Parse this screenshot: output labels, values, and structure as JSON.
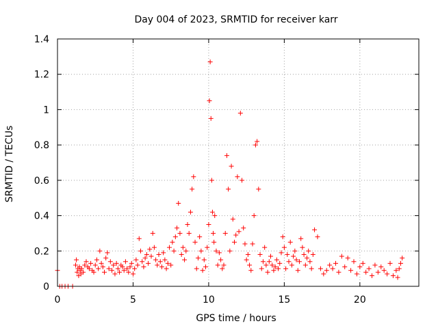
{
  "chart_data": {
    "type": "scatter",
    "title": "Day 004 of 2023, SRMTID for receiver karr",
    "xlabel": "GPS time / hours",
    "ylabel": "SRMTID / TECUs",
    "xlim": [
      0,
      23.9
    ],
    "ylim": [
      0,
      1.4
    ],
    "x_ticks": [
      0,
      5,
      10,
      15,
      20
    ],
    "x_tick_labels": [
      "0",
      "5",
      "10",
      "15",
      "20"
    ],
    "y_ticks": [
      0,
      0.2,
      0.4,
      0.6,
      0.8,
      1.0,
      1.2,
      1.4
    ],
    "y_tick_labels": [
      "0",
      "0.2",
      "0.4",
      "0.6",
      "0.8",
      "1",
      "1.2",
      "1.4"
    ],
    "grid": true,
    "marker": "plus",
    "series": [
      {
        "name": "SRMTID",
        "color": "#ff0000",
        "x": [
          0.0,
          0.15,
          0.3,
          0.5,
          0.7,
          1.0,
          1.2,
          1.25,
          1.3,
          1.35,
          1.4,
          1.45,
          1.5,
          1.55,
          1.6,
          1.7,
          1.8,
          1.9,
          2.0,
          2.1,
          2.2,
          2.3,
          2.4,
          2.5,
          2.6,
          2.7,
          2.8,
          2.9,
          3.0,
          3.1,
          3.2,
          3.3,
          3.4,
          3.5,
          3.6,
          3.7,
          3.8,
          3.9,
          4.0,
          4.1,
          4.2,
          4.3,
          4.4,
          4.5,
          4.6,
          4.7,
          4.8,
          4.9,
          5.0,
          5.1,
          5.2,
          5.3,
          5.4,
          5.5,
          5.6,
          5.7,
          5.8,
          5.9,
          6.0,
          6.1,
          6.2,
          6.3,
          6.4,
          6.5,
          6.6,
          6.7,
          6.8,
          6.9,
          7.0,
          7.1,
          7.2,
          7.3,
          7.4,
          7.5,
          7.6,
          7.7,
          7.8,
          7.9,
          8.0,
          8.1,
          8.2,
          8.3,
          8.4,
          8.5,
          8.6,
          8.7,
          8.8,
          8.9,
          9.0,
          9.1,
          9.2,
          9.3,
          9.4,
          9.5,
          9.6,
          9.7,
          9.8,
          9.9,
          10.0,
          10.05,
          10.1,
          10.15,
          10.2,
          10.25,
          10.3,
          10.35,
          10.4,
          10.5,
          10.6,
          10.7,
          10.8,
          10.9,
          11.0,
          11.1,
          11.2,
          11.3,
          11.4,
          11.5,
          11.6,
          11.7,
          11.8,
          11.9,
          12.0,
          12.1,
          12.2,
          12.3,
          12.4,
          12.5,
          12.6,
          12.7,
          12.8,
          12.9,
          13.0,
          13.1,
          13.2,
          13.3,
          13.4,
          13.5,
          13.6,
          13.7,
          13.8,
          13.9,
          14.0,
          14.1,
          14.2,
          14.3,
          14.4,
          14.5,
          14.6,
          14.7,
          14.8,
          14.9,
          15.0,
          15.1,
          15.2,
          15.3,
          15.4,
          15.5,
          15.6,
          15.7,
          15.8,
          15.9,
          16.0,
          16.1,
          16.2,
          16.3,
          16.4,
          16.5,
          16.6,
          16.7,
          16.8,
          16.9,
          17.0,
          17.2,
          17.4,
          17.6,
          17.8,
          18.0,
          18.2,
          18.4,
          18.6,
          18.8,
          19.0,
          19.2,
          19.4,
          19.6,
          19.8,
          20.0,
          20.2,
          20.4,
          20.6,
          20.8,
          21.0,
          21.2,
          21.4,
          21.6,
          21.8,
          22.0,
          22.2,
          22.4,
          22.5,
          22.6,
          22.7,
          22.8
        ],
        "y": [
          0.09,
          0.0,
          0.0,
          0.0,
          0.0,
          0.0,
          0.12,
          0.15,
          0.08,
          0.1,
          0.06,
          0.11,
          0.09,
          0.07,
          0.1,
          0.08,
          0.12,
          0.14,
          0.11,
          0.1,
          0.13,
          0.09,
          0.08,
          0.12,
          0.15,
          0.1,
          0.2,
          0.13,
          0.11,
          0.08,
          0.16,
          0.19,
          0.1,
          0.14,
          0.09,
          0.12,
          0.07,
          0.13,
          0.1,
          0.08,
          0.12,
          0.11,
          0.09,
          0.14,
          0.1,
          0.08,
          0.11,
          0.13,
          0.07,
          0.1,
          0.15,
          0.12,
          0.27,
          0.2,
          0.14,
          0.11,
          0.16,
          0.18,
          0.13,
          0.21,
          0.17,
          0.3,
          0.22,
          0.15,
          0.12,
          0.18,
          0.14,
          0.11,
          0.19,
          0.15,
          0.1,
          0.13,
          0.22,
          0.12,
          0.25,
          0.2,
          0.28,
          0.33,
          0.47,
          0.3,
          0.18,
          0.22,
          0.15,
          0.2,
          0.35,
          0.3,
          0.42,
          0.55,
          0.62,
          0.25,
          0.1,
          0.16,
          0.28,
          0.2,
          0.09,
          0.15,
          0.11,
          0.22,
          0.35,
          1.05,
          1.27,
          0.95,
          0.6,
          0.42,
          0.3,
          0.25,
          0.4,
          0.2,
          0.12,
          0.19,
          0.15,
          0.1,
          0.12,
          0.3,
          0.74,
          0.55,
          0.2,
          0.68,
          0.38,
          0.25,
          0.29,
          0.62,
          0.31,
          0.98,
          0.6,
          0.33,
          0.24,
          0.15,
          0.18,
          0.12,
          0.09,
          0.24,
          0.4,
          0.8,
          0.82,
          0.55,
          0.18,
          0.1,
          0.14,
          0.22,
          0.12,
          0.08,
          0.14,
          0.17,
          0.12,
          0.09,
          0.11,
          0.15,
          0.1,
          0.13,
          0.19,
          0.28,
          0.22,
          0.1,
          0.18,
          0.14,
          0.25,
          0.12,
          0.17,
          0.2,
          0.15,
          0.09,
          0.14,
          0.27,
          0.22,
          0.18,
          0.12,
          0.16,
          0.2,
          0.14,
          0.1,
          0.18,
          0.32,
          0.28,
          0.1,
          0.07,
          0.09,
          0.12,
          0.1,
          0.13,
          0.08,
          0.17,
          0.11,
          0.16,
          0.09,
          0.14,
          0.07,
          0.11,
          0.13,
          0.08,
          0.1,
          0.06,
          0.12,
          0.08,
          0.11,
          0.09,
          0.07,
          0.13,
          0.06,
          0.09,
          0.05,
          0.1,
          0.13,
          0.16
        ]
      }
    ]
  }
}
